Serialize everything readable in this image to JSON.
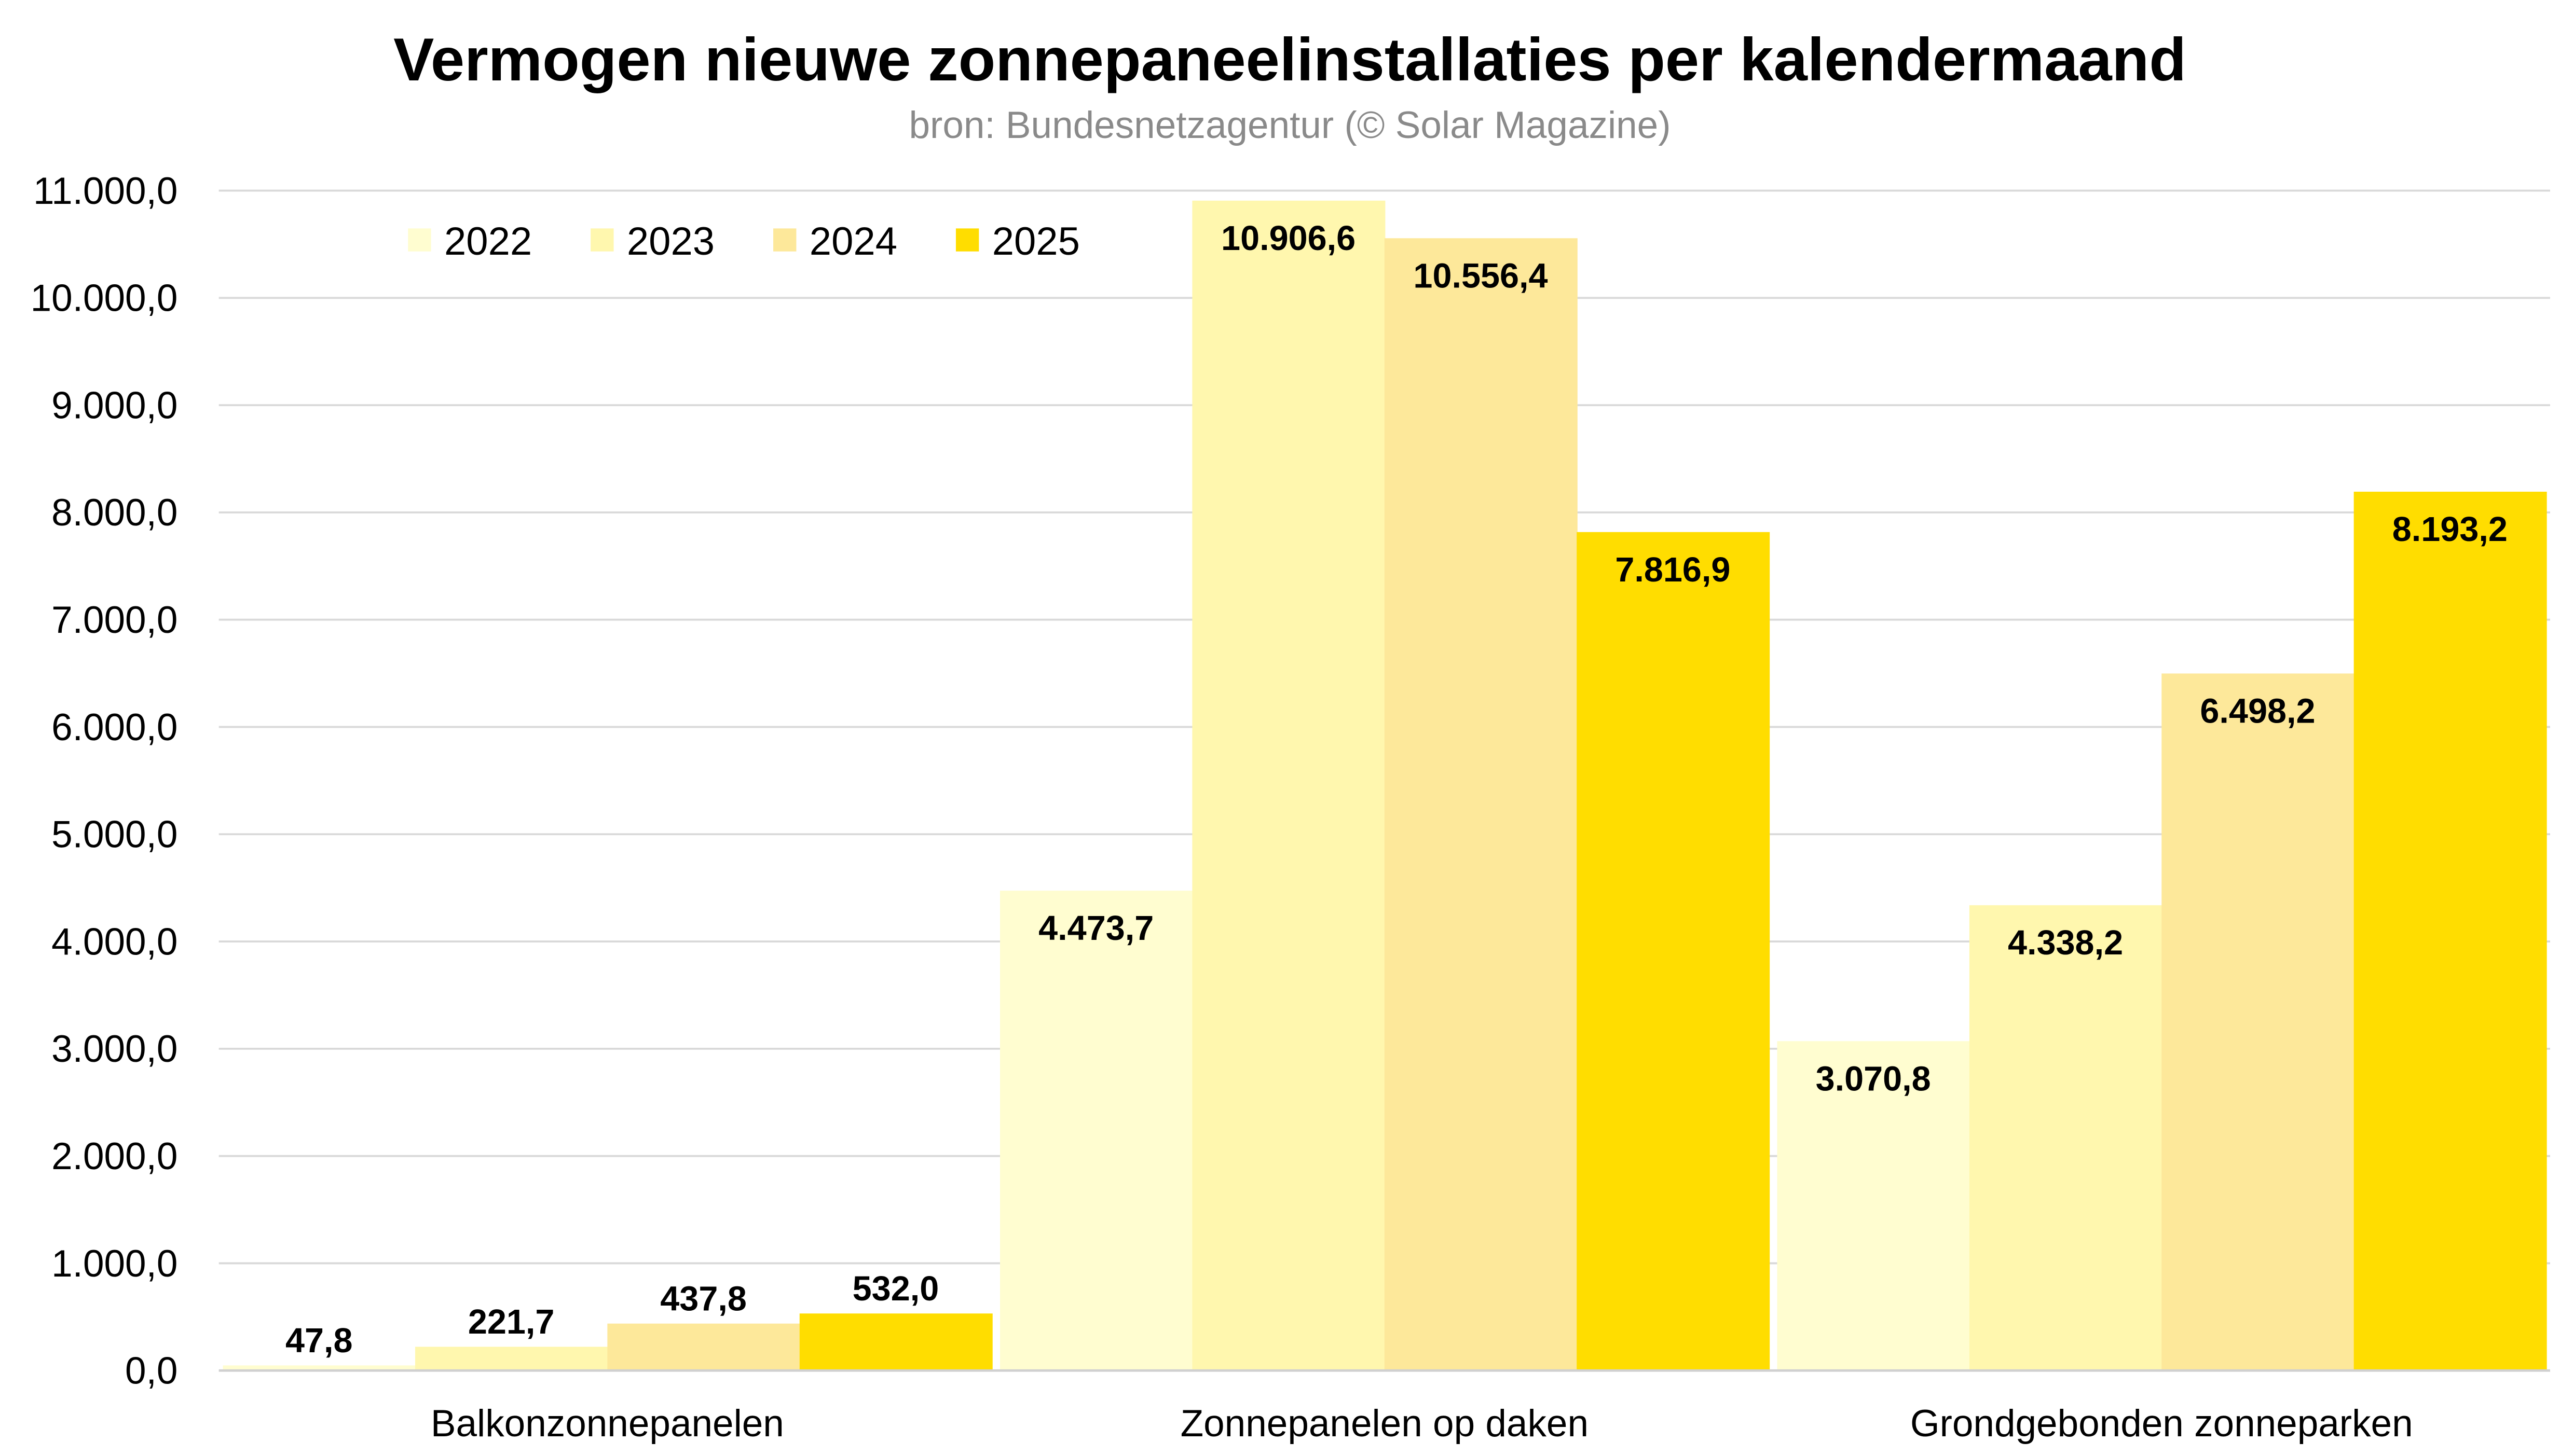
{
  "chart_data": {
    "type": "bar",
    "title": "Vermogen nieuwe zonnepaneelinstallaties per kalendermaand",
    "subtitle": "bron: Bundesnetzagentur (© Solar Magazine)",
    "xlabel": "",
    "ylabel": "",
    "ylim": [
      0,
      11000
    ],
    "yticks": [
      0,
      1000,
      2000,
      3000,
      4000,
      5000,
      6000,
      7000,
      8000,
      9000,
      10000,
      11000
    ],
    "ytick_labels": [
      "0,0",
      "1.000,0",
      "2.000,0",
      "3.000,0",
      "4.000,0",
      "5.000,0",
      "6.000,0",
      "7.000,0",
      "8.000,0",
      "9.000,0",
      "10.000,0",
      "11.000,0"
    ],
    "grid": true,
    "legend_position": "top-left",
    "categories": [
      "Balkonzonnepanelen",
      "Zonnepanelen op daken",
      "Grondgebonden zonneparken"
    ],
    "series": [
      {
        "name": "2022",
        "color": "#FFFDD0",
        "values": [
          47.8,
          4473.7,
          3070.8
        ],
        "labels": [
          "47,8",
          "4.473,7",
          "3.070,8"
        ]
      },
      {
        "name": "2023",
        "color": "#FFF7AE",
        "values": [
          221.7,
          10906.6,
          4338.2
        ],
        "labels": [
          "221,7",
          "10.906,6",
          "4.338,2"
        ]
      },
      {
        "name": "2024",
        "color": "#FDE89A",
        "values": [
          437.8,
          10556.4,
          6498.2
        ],
        "labels": [
          "437,8",
          "10.556,4",
          "6.498,2"
        ]
      },
      {
        "name": "2025",
        "color": "#FFDD00",
        "values": [
          532.0,
          7816.9,
          8193.2
        ],
        "labels": [
          "532,0",
          "7.816,9",
          "8.193,2"
        ]
      }
    ]
  }
}
